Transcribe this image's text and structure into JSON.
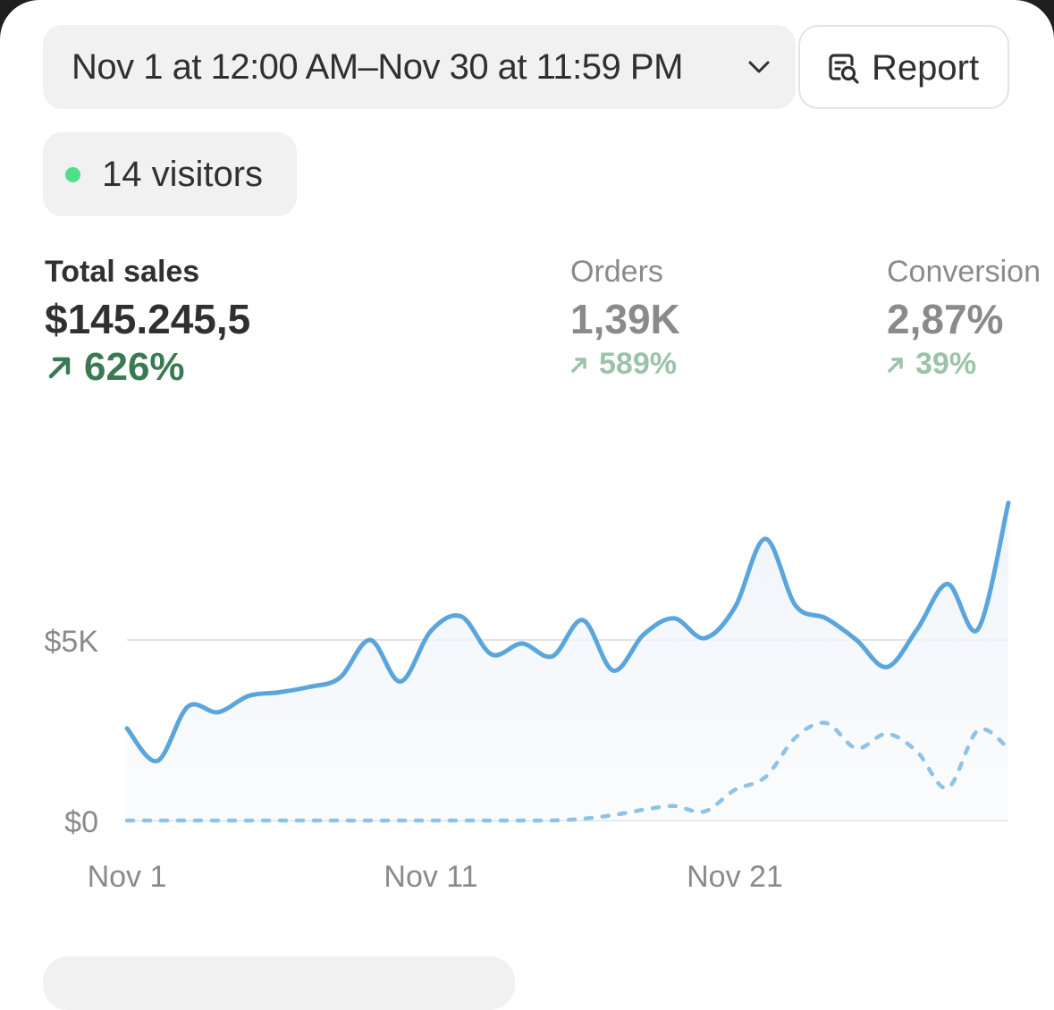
{
  "header": {
    "date_range": "Nov 1 at 12:00 AM–Nov 30 at 11:59 PM",
    "report_label": "Report",
    "chevron_icon": "chevron-down-icon",
    "report_icon": "report-search-icon"
  },
  "visitors": {
    "text": "14 visitors",
    "status_color": "#4fe08a"
  },
  "metrics": {
    "total_sales": {
      "label": "Total sales",
      "value": "$145.245,5",
      "delta": "626%"
    },
    "orders": {
      "label": "Orders",
      "value": "1,39K",
      "delta": "589%"
    },
    "conversion": {
      "label": "Conversion",
      "value": "2,87%",
      "delta": "39%"
    }
  },
  "colors": {
    "current_series": "#5aa6dc",
    "comparison_series": "#8ec3e6",
    "positive_delta": "#3a7a52",
    "muted_delta": "#9cc3a8"
  },
  "chart_data": {
    "type": "line",
    "x": [
      "Nov 1",
      "Nov 2",
      "Nov 3",
      "Nov 4",
      "Nov 5",
      "Nov 6",
      "Nov 7",
      "Nov 8",
      "Nov 9",
      "Nov 10",
      "Nov 11",
      "Nov 12",
      "Nov 13",
      "Nov 14",
      "Nov 15",
      "Nov 16",
      "Nov 17",
      "Nov 18",
      "Nov 19",
      "Nov 20",
      "Nov 21",
      "Nov 22",
      "Nov 23",
      "Nov 24",
      "Nov 25",
      "Nov 26",
      "Nov 27",
      "Nov 28",
      "Nov 29",
      "Nov 30"
    ],
    "x_ticks": [
      "Nov 1",
      "Nov 11",
      "Nov 21"
    ],
    "y_ticks": [
      "$0",
      "$5K"
    ],
    "ylim": [
      0,
      9500
    ],
    "grid": true,
    "series": [
      {
        "style": "solid",
        "values": [
          2550,
          1650,
          3150,
          3000,
          3450,
          3550,
          3700,
          3950,
          5000,
          3850,
          5250,
          5650,
          4600,
          4900,
          4550,
          5550,
          4150,
          5150,
          5600,
          5050,
          5900,
          7800,
          5950,
          5600,
          5000,
          4250,
          5300,
          6550,
          5300,
          8800
        ]
      },
      {
        "style": "dashed",
        "values": [
          0,
          0,
          0,
          0,
          0,
          0,
          0,
          0,
          0,
          0,
          0,
          0,
          0,
          0,
          0,
          50,
          150,
          300,
          400,
          250,
          850,
          1200,
          2300,
          2700,
          2000,
          2400,
          1900,
          900,
          2500,
          2000
        ]
      }
    ]
  }
}
